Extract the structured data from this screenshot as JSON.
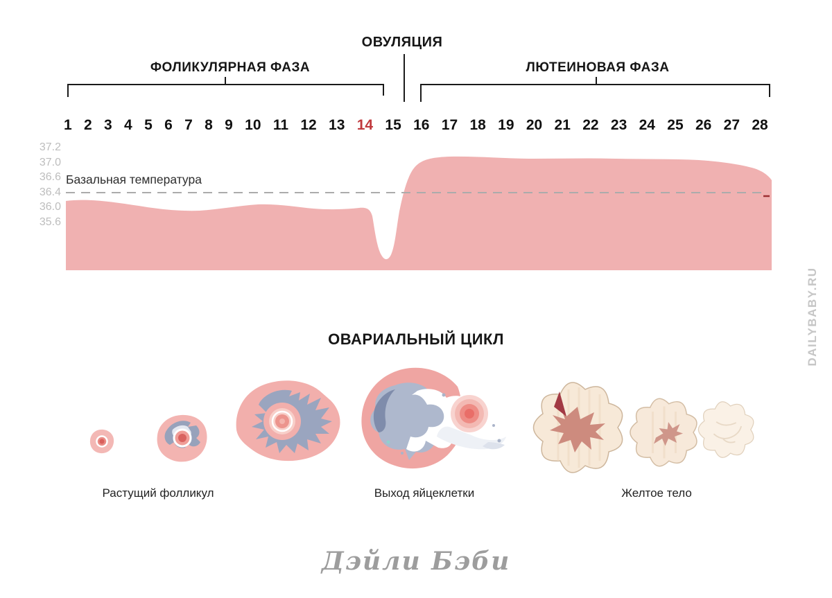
{
  "header": {
    "ovulation_label": "ОВУЛЯЦИЯ",
    "follicular_phase_label": "ФОЛИКУЛЯРНАЯ ФАЗА",
    "luteal_phase_label": "ЛЮТЕИНОВАЯ ФАЗА"
  },
  "chart": {
    "temperature_label": "Базальная температура",
    "highlight_day": 14
  },
  "chart_data": {
    "type": "area",
    "title": "Базальная температура",
    "x": [
      1,
      2,
      3,
      4,
      5,
      6,
      7,
      8,
      9,
      10,
      11,
      12,
      13,
      14,
      15,
      16,
      17,
      18,
      19,
      20,
      21,
      22,
      23,
      24,
      25,
      26,
      27,
      28
    ],
    "series": [
      {
        "name": "Базальная температура",
        "values": [
          36.2,
          36.22,
          36.2,
          36.17,
          36.12,
          36.08,
          36.05,
          36.08,
          36.12,
          36.17,
          36.2,
          36.17,
          36.05,
          36.5,
          36.95,
          37.0,
          37.0,
          37.0,
          37.0,
          37.0,
          37.0,
          37.0,
          37.0,
          36.98,
          36.95,
          36.92,
          36.85,
          36.6
        ]
      }
    ],
    "y_ticks": [
      "37.2",
      "37.0",
      "36.6",
      "36.4",
      "36.0",
      "35.6"
    ],
    "ylim": [
      35.0,
      37.4
    ],
    "reference_line": {
      "value": 36.4,
      "style": "dashed"
    },
    "annotations": {
      "ovulation_day": 14,
      "pre_ovulation_dip": {
        "day": 13.5,
        "value": 35.2
      }
    },
    "phases": [
      {
        "label": "ФОЛИКУЛЯРНАЯ ФАЗА",
        "days": [
          1,
          13
        ]
      },
      {
        "label": "ЛЮТЕИНОВАЯ ФАЗА",
        "days": [
          15,
          28
        ]
      }
    ],
    "fill_color": "#f0b1b1",
    "grid": false,
    "legend": "none"
  },
  "ovarian_cycle": {
    "title": "ОВАРИАЛЬНЫЙ ЦИКЛ",
    "captions": [
      "Растущий фолликул",
      "Выход яйцеклетки",
      "Желтое тело"
    ]
  },
  "footer": {
    "logo_text": "Дэйли Бэби"
  },
  "watermark": "DAILYBABY.RU",
  "colors": {
    "area_pink": "#f0b1b1",
    "highlight_red": "#c0393d",
    "axis_gray": "#bdbdbd",
    "dash_gray": "#ababab",
    "bracket_black": "#1a1a1a",
    "logo_gray": "#9d9d9d",
    "watermark_gray": "#c6c6c6"
  }
}
